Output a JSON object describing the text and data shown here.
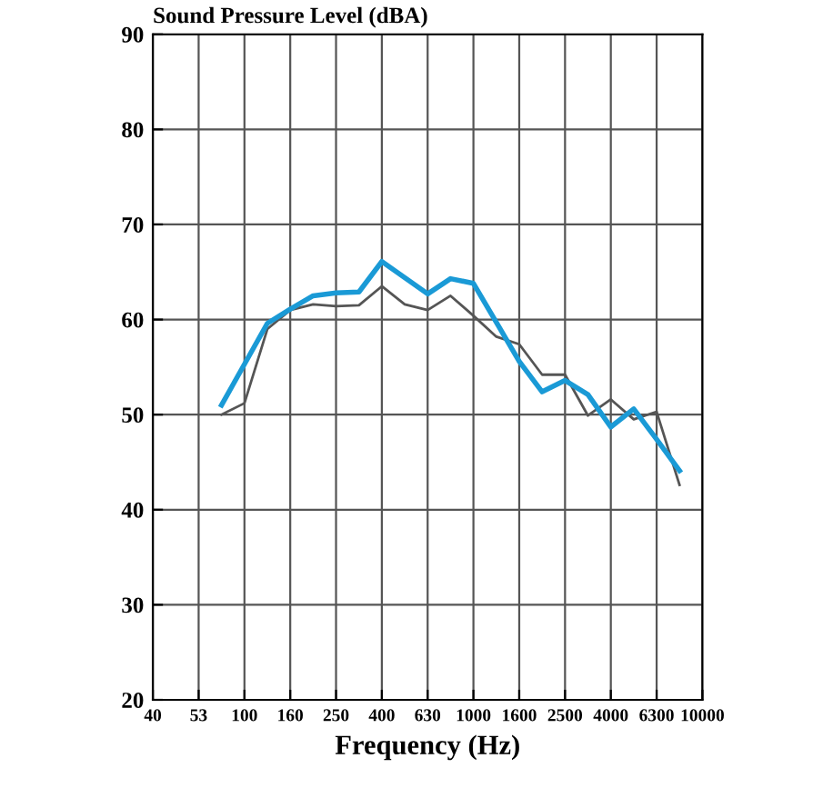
{
  "chart_data": {
    "type": "line",
    "ylabel": "Sound Pressure Level (dBA)",
    "xlabel": "Frequency (Hz)",
    "categories": [
      "40",
      null,
      "53",
      null,
      "100",
      null,
      "160",
      null,
      "250",
      null,
      "400",
      null,
      "630",
      null,
      "1000",
      null,
      "1600",
      null,
      "2500",
      null,
      "4000",
      null,
      "6300",
      null,
      "10000"
    ],
    "ylim": [
      20,
      90
    ],
    "yticks": [
      20,
      30,
      40,
      50,
      60,
      70,
      80,
      90
    ],
    "grid": true,
    "marker": "none",
    "line_style": "solid",
    "series": [
      {
        "color": "#555555",
        "values": [
          null,
          null,
          null,
          50.0,
          51.2,
          59.0,
          61.0,
          61.6,
          61.4,
          61.5,
          63.5,
          61.6,
          61.0,
          62.5,
          60.4,
          58.2,
          57.4,
          54.2,
          54.2,
          49.9,
          51.6,
          49.5,
          50.3,
          42.6,
          null
        ]
      },
      {
        "color": "#1a9ad6",
        "values": [
          null,
          null,
          null,
          51.0,
          55.3,
          59.6,
          61.1,
          62.5,
          62.8,
          62.9,
          66.1,
          64.4,
          62.7,
          64.3,
          63.8,
          59.7,
          55.6,
          52.4,
          53.6,
          52.1,
          48.7,
          50.6,
          47.4,
          44.1,
          null
        ]
      }
    ]
  }
}
